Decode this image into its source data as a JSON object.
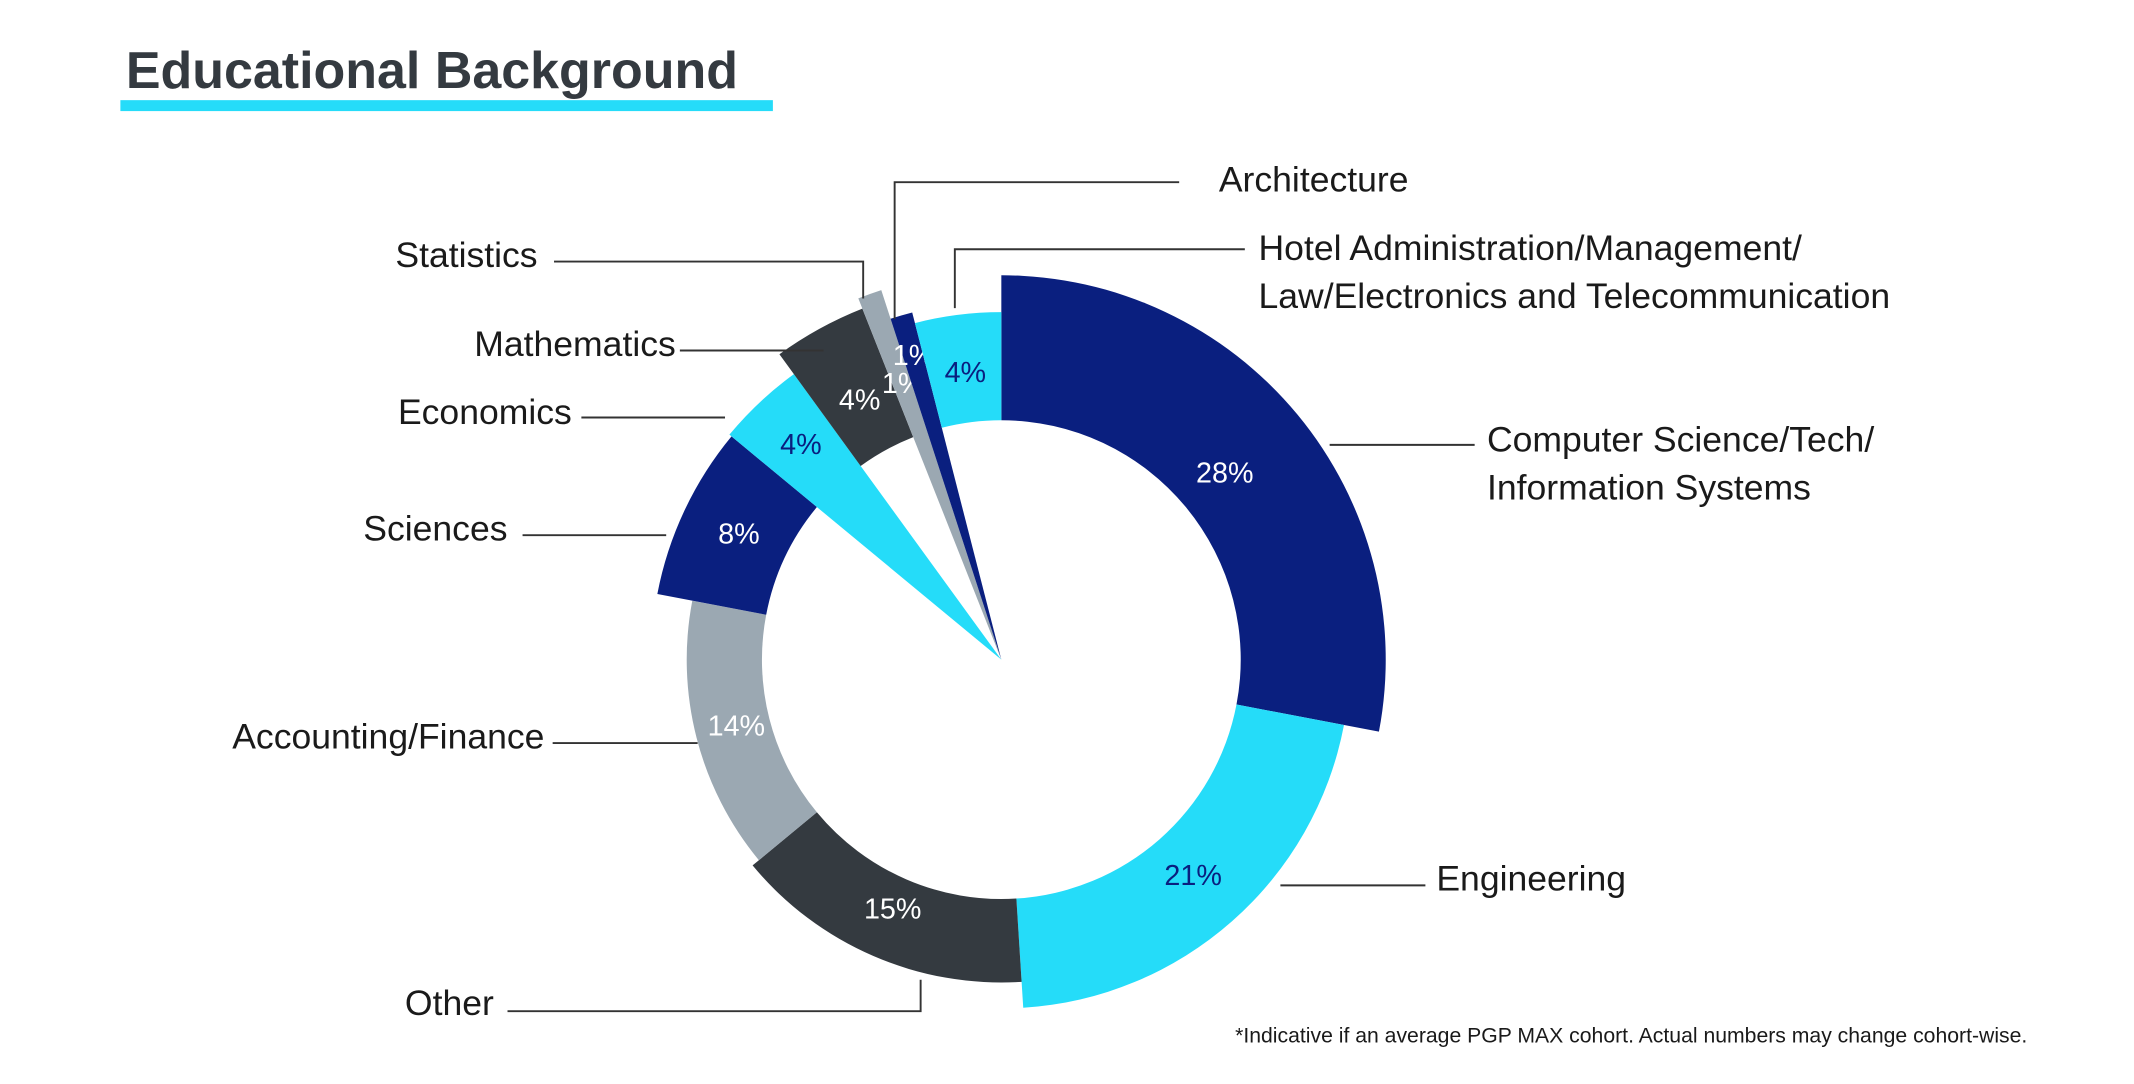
{
  "chart_data": {
    "type": "pie",
    "title": "Educational Background",
    "footnote": "*Indicative if an average PGP MAX cohort. Actual numbers may change cohort-wise.",
    "categories": [
      [
        "Computer Science/Tech/",
        "Information Systems"
      ],
      "Engineering",
      "Other",
      "Accounting/Finance",
      "Sciences",
      "Economics",
      "Mathematics",
      "Statistics",
      "Architecture",
      [
        "Hotel Administration/Management/",
        "Law/Electronics and Telecommunication"
      ]
    ],
    "values": [
      28,
      21,
      15,
      14,
      8,
      4,
      4,
      1,
      1,
      4
    ],
    "value_labels": [
      "28%",
      "21%",
      "15%",
      "14%",
      "8%",
      "4%",
      "4%",
      "1%",
      "1%",
      "4%"
    ],
    "colors": [
      "#0a1f7f",
      "#25dcf9",
      "#343a40",
      "#9ba8b2",
      "#0a1f7f",
      "#25dcf9",
      "#343a40",
      "#9ba8b2",
      "#0a1f7f",
      "#25dcf9"
    ],
    "label_colors": [
      "#ffffff",
      "#0a1f7f",
      "#ffffff",
      "#ffffff",
      "#ffffff",
      "#0a1f7f",
      "#ffffff",
      "#ffffff",
      "#ffffff",
      "#0a1f7f"
    ]
  }
}
